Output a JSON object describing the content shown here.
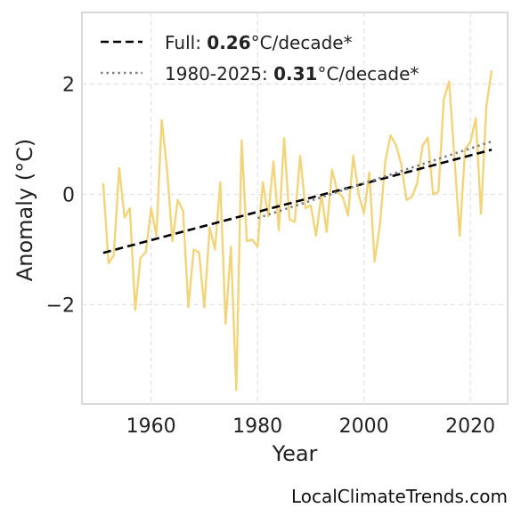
{
  "chart_data": {
    "type": "line",
    "xlabel": "Year",
    "ylabel": "Anomaly (°C)",
    "xlim": [
      1947,
      2027
    ],
    "ylim": [
      -3.8,
      3.3
    ],
    "x_ticks": [
      1960,
      1980,
      2000,
      2020
    ],
    "y_ticks": [
      {
        "value": 2,
        "label": "2"
      },
      {
        "value": 0,
        "label": "0"
      },
      {
        "value": -2,
        "label": "−2"
      }
    ],
    "grid": true,
    "legend_position": "top-left",
    "series": [
      {
        "color": "#f2d57a",
        "style": "solid",
        "x": [
          1951,
          1952,
          1953,
          1954,
          1955,
          1956,
          1957,
          1958,
          1959,
          1960,
          1961,
          1962,
          1963,
          1964,
          1965,
          1966,
          1967,
          1968,
          1969,
          1970,
          1971,
          1972,
          1973,
          1974,
          1975,
          1976,
          1977,
          1978,
          1979,
          1980,
          1981,
          1982,
          1983,
          1984,
          1985,
          1986,
          1987,
          1988,
          1989,
          1990,
          1991,
          1992,
          1993,
          1994,
          1995,
          1996,
          1997,
          1998,
          1999,
          2000,
          2001,
          2002,
          2003,
          2004,
          2005,
          2006,
          2007,
          2008,
          2009,
          2010,
          2011,
          2012,
          2013,
          2014,
          2015,
          2016,
          2017,
          2018,
          2019,
          2020,
          2021,
          2022,
          2023,
          2024
        ],
        "y": [
          0.2,
          -1.25,
          -1.1,
          0.48,
          -0.42,
          -0.25,
          -2.1,
          -1.15,
          -1.05,
          -0.25,
          -0.75,
          1.35,
          0.45,
          -0.85,
          -0.1,
          -0.3,
          -2.05,
          -1.0,
          -1.05,
          -2.05,
          -0.6,
          -1.0,
          0.22,
          -2.35,
          -0.95,
          -3.55,
          0.98,
          -0.85,
          -0.82,
          -0.95,
          0.22,
          -0.4,
          0.6,
          -0.65,
          1.02,
          -0.45,
          -0.5,
          0.7,
          -0.25,
          -0.2,
          -0.75,
          0.0,
          -0.68,
          0.45,
          0.05,
          -0.05,
          -0.38,
          0.7,
          0.0,
          -0.35,
          0.4,
          -1.22,
          -0.55,
          0.6,
          1.07,
          0.9,
          0.55,
          -0.1,
          -0.05,
          0.2,
          0.88,
          1.03,
          0.0,
          0.05,
          1.72,
          2.05,
          0.65,
          -0.75,
          0.82,
          0.95,
          1.38,
          -0.35,
          1.6,
          2.25
        ]
      },
      {
        "name": "Full",
        "color": "#000000",
        "style": "dashed",
        "x": [
          1951,
          2024
        ],
        "y": [
          -1.06,
          0.81
        ],
        "rate": "0.26",
        "unit": "°C/decade*"
      },
      {
        "name": "1980-2025",
        "color": "#808080",
        "style": "dotted",
        "x": [
          1980,
          2024
        ],
        "y": [
          -0.43,
          0.96
        ],
        "rate": "0.31",
        "unit": "°C/decade*"
      }
    ]
  },
  "source_label": "LocalClimateTrends.com",
  "legend": [
    {
      "name": "Full: ",
      "rate": "0.26",
      "unit": "°C/decade*"
    },
    {
      "name": "1980-2025: ",
      "rate": "0.31",
      "unit": "°C/decade*"
    }
  ]
}
